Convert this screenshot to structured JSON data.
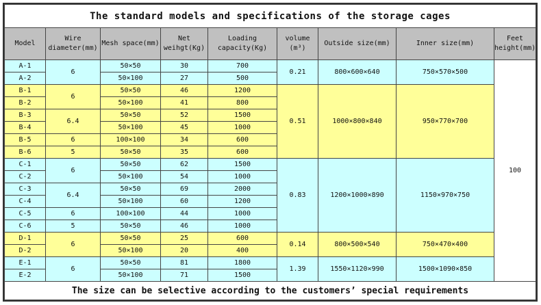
{
  "title": "The standard models and specifications of the storage cages",
  "footer": "The size can be selective according to the customers’ special requirements",
  "headers": [
    "Model",
    "Wire diameter(mm)",
    "Mesh space(mm)",
    "Net weihgt(Kg)",
    "Loading capacity(Kg)",
    "volume (m³)",
    "Outside size(mm)",
    "Inner size(mm)",
    "Feet height(mm)"
  ],
  "feet_height": "100",
  "colors": {
    "cyan": "#ccffff",
    "yellow": "#ffff99",
    "header": "#c0c0c0"
  },
  "groups": [
    {
      "color": "cyan",
      "volume": "0.21",
      "outside": "800×600×640",
      "inner": "750×570×500",
      "wires": [
        {
          "value": "6",
          "rows": [
            {
              "model": "A-1",
              "mesh": "50×50",
              "weight": "30",
              "capacity": "700"
            },
            {
              "model": "A-2",
              "mesh": "50×100",
              "weight": "27",
              "capacity": "500"
            }
          ]
        }
      ]
    },
    {
      "color": "yellow",
      "volume": "0.51",
      "outside": "1000×800×840",
      "inner": "950×770×700",
      "wires": [
        {
          "value": "6",
          "rows": [
            {
              "model": "B-1",
              "mesh": "50×50",
              "weight": "46",
              "capacity": "1200"
            },
            {
              "model": "B-2",
              "mesh": "50×100",
              "weight": "41",
              "capacity": "800"
            }
          ]
        },
        {
          "value": "6.4",
          "rows": [
            {
              "model": "B-3",
              "mesh": "50×50",
              "weight": "52",
              "capacity": "1500"
            },
            {
              "model": "B-4",
              "mesh": "50×100",
              "weight": "45",
              "capacity": "1000"
            }
          ]
        },
        {
          "value": "6",
          "rows": [
            {
              "model": "B-5",
              "mesh": "100×100",
              "weight": "34",
              "capacity": "600"
            }
          ]
        },
        {
          "value": "5",
          "rows": [
            {
              "model": "B-6",
              "mesh": "50×50",
              "weight": "35",
              "capacity": "600"
            }
          ]
        }
      ]
    },
    {
      "color": "cyan",
      "volume": "0.83",
      "outside": "1200×1000×890",
      "inner": "1150×970×750",
      "wires": [
        {
          "value": "6",
          "rows": [
            {
              "model": "C-1",
              "mesh": "50×50",
              "weight": "62",
              "capacity": "1500"
            },
            {
              "model": "C-2",
              "mesh": "50×100",
              "weight": "54",
              "capacity": "1000"
            }
          ]
        },
        {
          "value": "6.4",
          "rows": [
            {
              "model": "C-3",
              "mesh": "50×50",
              "weight": "69",
              "capacity": "2000"
            },
            {
              "model": "C-4",
              "mesh": "50×100",
              "weight": "60",
              "capacity": "1200"
            }
          ]
        },
        {
          "value": "6",
          "rows": [
            {
              "model": "C-5",
              "mesh": "100×100",
              "weight": "44",
              "capacity": "1000"
            }
          ]
        },
        {
          "value": "5",
          "rows": [
            {
              "model": "C-6",
              "mesh": "50×50",
              "weight": "46",
              "capacity": "1000"
            }
          ]
        }
      ]
    },
    {
      "color": "yellow",
      "volume": "0.14",
      "outside": "800×500×540",
      "inner": "750×470×400",
      "wires": [
        {
          "value": "6",
          "rows": [
            {
              "model": "D-1",
              "mesh": "50×50",
              "weight": "25",
              "capacity": "600"
            },
            {
              "model": "D-2",
              "mesh": "50×100",
              "weight": "20",
              "capacity": "400"
            }
          ]
        }
      ]
    },
    {
      "color": "cyan",
      "volume": "1.39",
      "outside": "1550×1120×990",
      "inner": "1500×1090×850",
      "wires": [
        {
          "value": "6",
          "rows": [
            {
              "model": "E-1",
              "mesh": "50×50",
              "weight": "81",
              "capacity": "1800"
            },
            {
              "model": "E-2",
              "mesh": "50×100",
              "weight": "71",
              "capacity": "1500"
            }
          ]
        }
      ]
    }
  ]
}
